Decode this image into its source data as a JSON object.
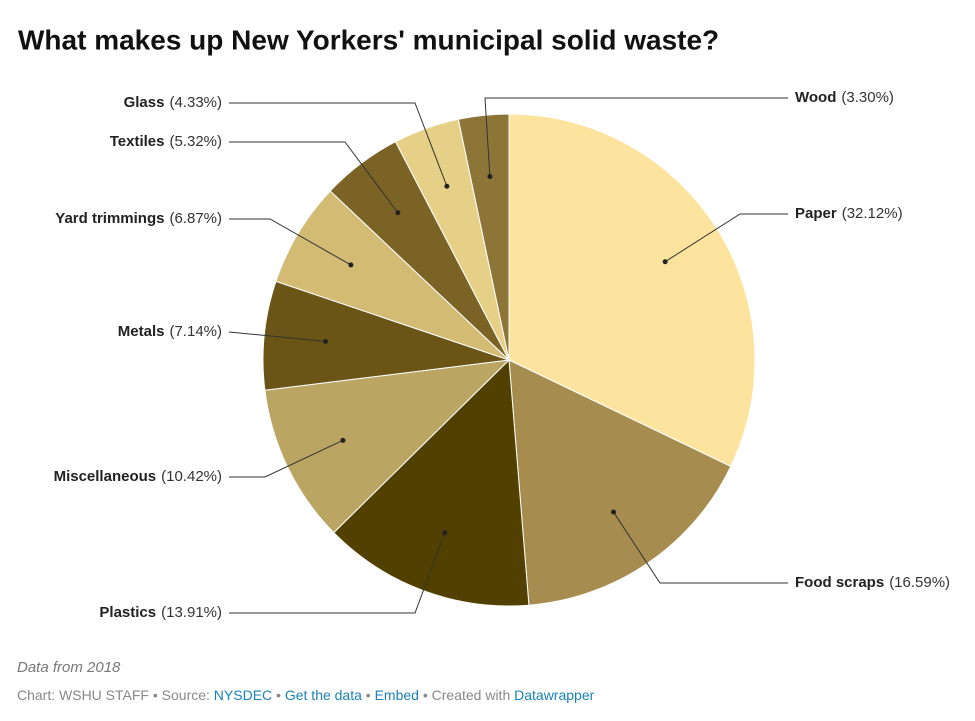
{
  "chart_data": {
    "type": "pie",
    "title": "What makes up New Yorkers' municipal solid waste?",
    "categories": [
      "Paper",
      "Food scraps",
      "Plastics",
      "Miscellaneous",
      "Metals",
      "Yard trimmings",
      "Textiles",
      "Glass",
      "Wood"
    ],
    "values": [
      32.12,
      16.59,
      13.91,
      10.42,
      7.14,
      6.87,
      5.32,
      4.33,
      3.3
    ],
    "value_labels": [
      "(32.12%)",
      "(16.59%)",
      "(13.91%)",
      "(10.42%)",
      "(7.14%)",
      "(6.87%)",
      "(5.32%)",
      "(4.33%)",
      "(3.30%)"
    ],
    "colors": [
      "#fde49e",
      "#a68d4f",
      "#524000",
      "#bba563",
      "#6b5516",
      "#d3bb74",
      "#7b6325",
      "#e6cf86",
      "#8d7437"
    ]
  },
  "footer": {
    "note": "Data from 2018",
    "byline": "Chart: WSHU STAFF",
    "separator": "•",
    "source_label": "Source:",
    "source": "NYSDEC",
    "get_data": "Get the data",
    "embed": "Embed",
    "created_with": "Created with",
    "tool": "Datawrapper"
  }
}
